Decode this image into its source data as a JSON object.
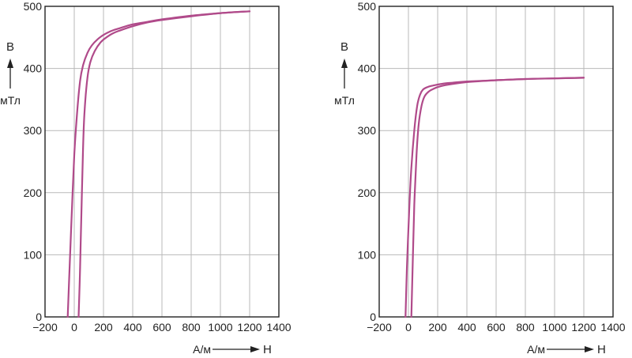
{
  "chart_data": [
    {
      "type": "line",
      "title": "",
      "xlabel": "H",
      "ylabel": "B",
      "x_unit": "А/м",
      "y_unit": "мТл",
      "xlim": [
        -200,
        1400
      ],
      "ylim": [
        0,
        500
      ],
      "x_ticks": [
        "−200",
        "0",
        "200",
        "400",
        "600",
        "800",
        "1000",
        "1200",
        "1400"
      ],
      "y_ticks": [
        "0",
        "100",
        "200",
        "300",
        "400",
        "500"
      ],
      "grid": true,
      "color": "#b04a8a",
      "series": [
        {
          "x": [
            -45,
            -35,
            -20,
            0,
            20,
            40,
            60,
            90,
            120,
            160,
            200,
            250,
            300,
            400,
            500,
            600,
            800,
            1000,
            1200
          ],
          "y": [
            0,
            60,
            150,
            260,
            330,
            380,
            405,
            425,
            437,
            447,
            454,
            460,
            464,
            471,
            475,
            479,
            485,
            489,
            492
          ]
        },
        {
          "x": [
            30,
            40,
            50,
            60,
            70,
            90,
            110,
            140,
            180,
            220,
            260,
            300,
            400,
            500,
            600,
            800,
            1000,
            1200
          ],
          "y": [
            0,
            80,
            180,
            270,
            330,
            385,
            410,
            428,
            442,
            450,
            456,
            460,
            468,
            474,
            478,
            484,
            489,
            492
          ]
        }
      ]
    },
    {
      "type": "line",
      "title": "",
      "xlabel": "H",
      "ylabel": "B",
      "x_unit": "А/м",
      "y_unit": "мТл",
      "xlim": [
        -200,
        1400
      ],
      "ylim": [
        0,
        500
      ],
      "x_ticks": [
        "−200",
        "0",
        "200",
        "400",
        "600",
        "800",
        "1000",
        "1200",
        "1400"
      ],
      "y_ticks": [
        "0",
        "100",
        "200",
        "300",
        "400",
        "500"
      ],
      "grid": true,
      "color": "#b04a8a",
      "series": [
        {
          "x": [
            -20,
            -10,
            5,
            20,
            40,
            60,
            80,
            100,
            130,
            160,
            200,
            250,
            300,
            400,
            600,
            800,
            1000,
            1200
          ],
          "y": [
            0,
            80,
            170,
            240,
            300,
            340,
            358,
            366,
            370,
            372,
            374,
            376,
            377,
            379,
            381,
            383,
            384,
            385
          ]
        },
        {
          "x": [
            20,
            30,
            40,
            55,
            70,
            90,
            110,
            140,
            170,
            200,
            250,
            300,
            400,
            600,
            800,
            1000,
            1200
          ],
          "y": [
            0,
            90,
            180,
            260,
            310,
            340,
            355,
            363,
            367,
            370,
            373,
            375,
            378,
            381,
            383,
            384,
            385
          ]
        }
      ]
    }
  ]
}
